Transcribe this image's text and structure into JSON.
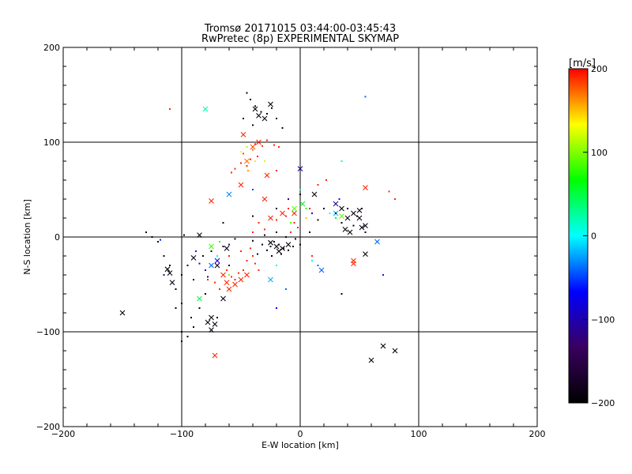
{
  "chart_data": {
    "type": "scatter",
    "title": "Tromsø 20171015 03:44:00-03:45:43",
    "subtitle": "RwPretec (8p) EXPERIMENTAL SKYMAP",
    "xlabel": "E-W location [km]",
    "ylabel": "N-S location [km]",
    "xlim": [
      -200,
      200
    ],
    "ylim": [
      -200,
      200
    ],
    "xticks": [
      -200,
      -100,
      0,
      100,
      200
    ],
    "yticks": [
      -200,
      -100,
      0,
      100,
      200
    ],
    "grid": true,
    "colorbar": {
      "label": "[m/s]",
      "range": [
        -200,
        200
      ],
      "ticks": [
        200,
        100,
        0,
        -100,
        -200
      ],
      "colors": [
        "#000000",
        "#3a0060",
        "#0000ff",
        "#00ffff",
        "#00ff00",
        "#ffff00",
        "#ff0000"
      ]
    },
    "markers": {
      "dot": "small point",
      "cross": "x"
    },
    "points": [
      {
        "x": -50,
        "y": -45,
        "v": 190,
        "m": "x"
      },
      {
        "x": -55,
        "y": -50,
        "v": 190,
        "m": "x"
      },
      {
        "x": -60,
        "y": -55,
        "v": 190,
        "m": "x"
      },
      {
        "x": -45,
        "y": -40,
        "v": 190,
        "m": "x"
      },
      {
        "x": -65,
        "y": -40,
        "v": 190,
        "m": "x"
      },
      {
        "x": -62,
        "y": -48,
        "v": 190,
        "m": "x"
      },
      {
        "x": -72,
        "y": -125,
        "v": 190,
        "m": "x"
      },
      {
        "x": -75,
        "y": 38,
        "v": 190,
        "m": "x"
      },
      {
        "x": -50,
        "y": 55,
        "v": 190,
        "m": "x"
      },
      {
        "x": -45,
        "y": 80,
        "v": 170,
        "m": "x"
      },
      {
        "x": -40,
        "y": 95,
        "v": 180,
        "m": "x"
      },
      {
        "x": -48,
        "y": 108,
        "v": 190,
        "m": "x"
      },
      {
        "x": -35,
        "y": 100,
        "v": 190,
        "m": "x"
      },
      {
        "x": -28,
        "y": 65,
        "v": 190,
        "m": "x"
      },
      {
        "x": -15,
        "y": 25,
        "v": 190,
        "m": "x"
      },
      {
        "x": -25,
        "y": 20,
        "v": 190,
        "m": "x"
      },
      {
        "x": -5,
        "y": 25,
        "v": 190,
        "m": "x"
      },
      {
        "x": 55,
        "y": 52,
        "v": 190,
        "m": "x"
      },
      {
        "x": 45,
        "y": -25,
        "v": 190,
        "m": "x"
      },
      {
        "x": -30,
        "y": 40,
        "v": 190,
        "m": "x"
      },
      {
        "x": -20,
        "y": -10,
        "v": -190,
        "m": "x"
      },
      {
        "x": -15,
        "y": -12,
        "v": -190,
        "m": "x"
      },
      {
        "x": -10,
        "y": -8,
        "v": -190,
        "m": "x"
      },
      {
        "x": -25,
        "y": -6,
        "v": -190,
        "m": "x"
      },
      {
        "x": -18,
        "y": -15,
        "v": -190,
        "m": "x"
      },
      {
        "x": -35,
        "y": 128,
        "v": -190,
        "m": "x"
      },
      {
        "x": -30,
        "y": 125,
        "v": -190,
        "m": "x"
      },
      {
        "x": -38,
        "y": 135,
        "v": -190,
        "m": "x"
      },
      {
        "x": -25,
        "y": 140,
        "v": -190,
        "m": "x"
      },
      {
        "x": 35,
        "y": 30,
        "v": -190,
        "m": "x"
      },
      {
        "x": 40,
        "y": 20,
        "v": -190,
        "m": "x"
      },
      {
        "x": 45,
        "y": 25,
        "v": -190,
        "m": "x"
      },
      {
        "x": 50,
        "y": 28,
        "v": -190,
        "m": "x"
      },
      {
        "x": 38,
        "y": 8,
        "v": -190,
        "m": "x"
      },
      {
        "x": 42,
        "y": 5,
        "v": -190,
        "m": "x"
      },
      {
        "x": 55,
        "y": 12,
        "v": -190,
        "m": "x"
      },
      {
        "x": 12,
        "y": 45,
        "v": -190,
        "m": "x"
      },
      {
        "x": 55,
        "y": -18,
        "v": -190,
        "m": "x"
      },
      {
        "x": -110,
        "y": -38,
        "v": -190,
        "m": "x"
      },
      {
        "x": -108,
        "y": -48,
        "v": -190,
        "m": "x"
      },
      {
        "x": -112,
        "y": -34,
        "v": -190,
        "m": "x"
      },
      {
        "x": -150,
        "y": -80,
        "v": -190,
        "m": "x"
      },
      {
        "x": -75,
        "y": -85,
        "v": -190,
        "m": "x"
      },
      {
        "x": -72,
        "y": -92,
        "v": -190,
        "m": "x"
      },
      {
        "x": -78,
        "y": -90,
        "v": -190,
        "m": "x"
      },
      {
        "x": -75,
        "y": -98,
        "v": -190,
        "m": "x"
      },
      {
        "x": -65,
        "y": -65,
        "v": -190,
        "m": "x"
      },
      {
        "x": -90,
        "y": -22,
        "v": -190,
        "m": "x"
      },
      {
        "x": -85,
        "y": 2,
        "v": -190,
        "m": "x"
      },
      {
        "x": -70,
        "y": -30,
        "v": -190,
        "m": "x"
      },
      {
        "x": -62,
        "y": -12,
        "v": -190,
        "m": "x"
      },
      {
        "x": 70,
        "y": -115,
        "v": -190,
        "m": "x"
      },
      {
        "x": 80,
        "y": -120,
        "v": -190,
        "m": "x"
      },
      {
        "x": 60,
        "y": -130,
        "v": -190,
        "m": "x"
      },
      {
        "x": 50,
        "y": 20,
        "v": -190,
        "m": "x"
      },
      {
        "x": 52,
        "y": 10,
        "v": -190,
        "m": "x"
      },
      {
        "x": -80,
        "y": 135,
        "v": 20,
        "m": "x"
      },
      {
        "x": -85,
        "y": -65,
        "v": 50,
        "m": "x"
      },
      {
        "x": -60,
        "y": 45,
        "v": -30,
        "m": "x"
      },
      {
        "x": -25,
        "y": -45,
        "v": -20,
        "m": "x"
      },
      {
        "x": 65,
        "y": -5,
        "v": -40,
        "m": "x"
      },
      {
        "x": 18,
        "y": -35,
        "v": -40,
        "m": "x"
      },
      {
        "x": -75,
        "y": -30,
        "v": -40,
        "m": "x"
      },
      {
        "x": -70,
        "y": -25,
        "v": -80,
        "m": "x"
      },
      {
        "x": 0,
        "y": 72,
        "v": -110,
        "m": "x"
      },
      {
        "x": 30,
        "y": 35,
        "v": -110,
        "m": "x"
      },
      {
        "x": -75,
        "y": -10,
        "v": 80,
        "m": "x"
      },
      {
        "x": -5,
        "y": 30,
        "v": 90,
        "m": "x"
      },
      {
        "x": 2,
        "y": 35,
        "v": 60,
        "m": "x"
      },
      {
        "x": 35,
        "y": 22,
        "v": 90,
        "m": "x"
      },
      {
        "x": 45,
        "y": -28,
        "v": 190,
        "m": "x"
      },
      {
        "x": 30,
        "y": 25,
        "v": -20,
        "m": "x"
      },
      {
        "x": -45,
        "y": 75,
        "v": 190,
        "m": "."
      },
      {
        "x": -42,
        "y": 82,
        "v": 190,
        "m": "."
      },
      {
        "x": -48,
        "y": 88,
        "v": 180,
        "m": "."
      },
      {
        "x": -40,
        "y": 92,
        "v": 170,
        "m": "."
      },
      {
        "x": -38,
        "y": 98,
        "v": 190,
        "m": "."
      },
      {
        "x": -32,
        "y": 96,
        "v": 190,
        "m": "."
      },
      {
        "x": -28,
        "y": 102,
        "v": 190,
        "m": "."
      },
      {
        "x": -22,
        "y": 97,
        "v": 190,
        "m": "."
      },
      {
        "x": -44,
        "y": 70,
        "v": 160,
        "m": "."
      },
      {
        "x": -50,
        "y": 78,
        "v": 190,
        "m": "."
      },
      {
        "x": -36,
        "y": 85,
        "v": 190,
        "m": "."
      },
      {
        "x": -30,
        "y": 80,
        "v": 120,
        "m": "."
      },
      {
        "x": -18,
        "y": 95,
        "v": 190,
        "m": "."
      },
      {
        "x": -55,
        "y": 72,
        "v": 190,
        "m": "."
      },
      {
        "x": -58,
        "y": 68,
        "v": 190,
        "m": "."
      },
      {
        "x": -20,
        "y": 70,
        "v": 190,
        "m": "."
      },
      {
        "x": -10,
        "y": 30,
        "v": 190,
        "m": "."
      },
      {
        "x": -5,
        "y": 15,
        "v": 190,
        "m": "."
      },
      {
        "x": -12,
        "y": 22,
        "v": 190,
        "m": "."
      },
      {
        "x": -20,
        "y": 18,
        "v": 190,
        "m": "."
      },
      {
        "x": -2,
        "y": 10,
        "v": 190,
        "m": "."
      },
      {
        "x": -30,
        "y": 8,
        "v": 190,
        "m": "."
      },
      {
        "x": -35,
        "y": 15,
        "v": 190,
        "m": "."
      },
      {
        "x": -40,
        "y": 5,
        "v": 190,
        "m": "."
      },
      {
        "x": -8,
        "y": 5,
        "v": 190,
        "m": "."
      },
      {
        "x": 5,
        "y": 20,
        "v": 150,
        "m": "."
      },
      {
        "x": 8,
        "y": 30,
        "v": 190,
        "m": "."
      },
      {
        "x": 15,
        "y": 55,
        "v": 190,
        "m": "."
      },
      {
        "x": 22,
        "y": 60,
        "v": 190,
        "m": "."
      },
      {
        "x": 75,
        "y": 48,
        "v": 190,
        "m": "."
      },
      {
        "x": 80,
        "y": 40,
        "v": 190,
        "m": "."
      },
      {
        "x": -110,
        "y": 135,
        "v": 190,
        "m": "."
      },
      {
        "x": -55,
        "y": -45,
        "v": 190,
        "m": "."
      },
      {
        "x": -58,
        "y": -42,
        "v": 190,
        "m": "."
      },
      {
        "x": -52,
        "y": -38,
        "v": 190,
        "m": "."
      },
      {
        "x": -48,
        "y": -35,
        "v": 190,
        "m": "."
      },
      {
        "x": -62,
        "y": -35,
        "v": 190,
        "m": "."
      },
      {
        "x": -45,
        "y": -25,
        "v": 190,
        "m": "."
      },
      {
        "x": -40,
        "y": -20,
        "v": 190,
        "m": "."
      },
      {
        "x": -38,
        "y": -28,
        "v": 190,
        "m": "."
      },
      {
        "x": -68,
        "y": -55,
        "v": 190,
        "m": "."
      },
      {
        "x": -72,
        "y": -48,
        "v": 190,
        "m": "."
      },
      {
        "x": -78,
        "y": -45,
        "v": 190,
        "m": "."
      },
      {
        "x": -42,
        "y": -12,
        "v": 190,
        "m": "."
      },
      {
        "x": -50,
        "y": -15,
        "v": 190,
        "m": "."
      },
      {
        "x": -60,
        "y": -20,
        "v": 190,
        "m": "."
      },
      {
        "x": -35,
        "y": -35,
        "v": 190,
        "m": "."
      },
      {
        "x": 10,
        "y": -20,
        "v": 190,
        "m": "."
      },
      {
        "x": -25,
        "y": -10,
        "v": -190,
        "m": "."
      },
      {
        "x": -22,
        "y": -5,
        "v": -190,
        "m": "."
      },
      {
        "x": -18,
        "y": -8,
        "v": -190,
        "m": "."
      },
      {
        "x": -14,
        "y": -12,
        "v": -190,
        "m": "."
      },
      {
        "x": -10,
        "y": -14,
        "v": -190,
        "m": "."
      },
      {
        "x": -6,
        "y": -10,
        "v": -190,
        "m": "."
      },
      {
        "x": -28,
        "y": -14,
        "v": -190,
        "m": "."
      },
      {
        "x": -32,
        "y": -8,
        "v": -190,
        "m": "."
      },
      {
        "x": -30,
        "y": 2,
        "v": -190,
        "m": "."
      },
      {
        "x": -20,
        "y": 5,
        "v": -190,
        "m": "."
      },
      {
        "x": -12,
        "y": 0,
        "v": -190,
        "m": "."
      },
      {
        "x": -4,
        "y": -2,
        "v": -190,
        "m": "."
      },
      {
        "x": 0,
        "y": -8,
        "v": -190,
        "m": "."
      },
      {
        "x": -16,
        "y": -18,
        "v": -190,
        "m": "."
      },
      {
        "x": -24,
        "y": -20,
        "v": -190,
        "m": "."
      },
      {
        "x": -36,
        "y": -18,
        "v": -190,
        "m": "."
      },
      {
        "x": -40,
        "y": -4,
        "v": -190,
        "m": "."
      },
      {
        "x": -55,
        "y": -2,
        "v": -190,
        "m": "."
      },
      {
        "x": -60,
        "y": -30,
        "v": -190,
        "m": "."
      },
      {
        "x": -65,
        "y": -10,
        "v": -190,
        "m": "."
      },
      {
        "x": -38,
        "y": 138,
        "v": -190,
        "m": "."
      },
      {
        "x": -42,
        "y": 145,
        "v": -190,
        "m": "."
      },
      {
        "x": -33,
        "y": 132,
        "v": -190,
        "m": "."
      },
      {
        "x": -28,
        "y": 130,
        "v": -190,
        "m": "."
      },
      {
        "x": -24,
        "y": 136,
        "v": -190,
        "m": "."
      },
      {
        "x": -45,
        "y": 152,
        "v": -190,
        "m": "."
      },
      {
        "x": -40,
        "y": 118,
        "v": -190,
        "m": "."
      },
      {
        "x": -20,
        "y": 125,
        "v": -190,
        "m": "."
      },
      {
        "x": -15,
        "y": 115,
        "v": -190,
        "m": "."
      },
      {
        "x": -48,
        "y": 125,
        "v": -190,
        "m": "."
      },
      {
        "x": -110,
        "y": -30,
        "v": -190,
        "m": "."
      },
      {
        "x": -115,
        "y": -20,
        "v": -190,
        "m": "."
      },
      {
        "x": -100,
        "y": -40,
        "v": -190,
        "m": "."
      },
      {
        "x": -105,
        "y": -55,
        "v": -190,
        "m": "."
      },
      {
        "x": -95,
        "y": -30,
        "v": -190,
        "m": "."
      },
      {
        "x": -90,
        "y": -45,
        "v": -190,
        "m": "."
      },
      {
        "x": -120,
        "y": -5,
        "v": -190,
        "m": "."
      },
      {
        "x": -125,
        "y": 0,
        "v": -190,
        "m": "."
      },
      {
        "x": -100,
        "y": -70,
        "v": -190,
        "m": "."
      },
      {
        "x": -105,
        "y": -75,
        "v": -190,
        "m": "."
      },
      {
        "x": -100,
        "y": -100,
        "v": -190,
        "m": "."
      },
      {
        "x": -95,
        "y": -105,
        "v": -190,
        "m": "."
      },
      {
        "x": -90,
        "y": -95,
        "v": -190,
        "m": "."
      },
      {
        "x": -100,
        "y": -110,
        "v": -190,
        "m": "."
      },
      {
        "x": -92,
        "y": -85,
        "v": -190,
        "m": "."
      },
      {
        "x": -85,
        "y": -75,
        "v": -190,
        "m": "."
      },
      {
        "x": -80,
        "y": -60,
        "v": -190,
        "m": "."
      },
      {
        "x": -98,
        "y": 2,
        "v": -190,
        "m": "."
      },
      {
        "x": -75,
        "y": -15,
        "v": -190,
        "m": "."
      },
      {
        "x": -82,
        "y": -20,
        "v": -190,
        "m": "."
      },
      {
        "x": 35,
        "y": 15,
        "v": -190,
        "m": "."
      },
      {
        "x": 30,
        "y": 25,
        "v": -190,
        "m": "."
      },
      {
        "x": 40,
        "y": 30,
        "v": -190,
        "m": "."
      },
      {
        "x": 48,
        "y": 22,
        "v": -190,
        "m": "."
      },
      {
        "x": 45,
        "y": 12,
        "v": -190,
        "m": "."
      },
      {
        "x": 52,
        "y": 30,
        "v": -190,
        "m": "."
      },
      {
        "x": 55,
        "y": 5,
        "v": -190,
        "m": "."
      },
      {
        "x": 35,
        "y": -60,
        "v": -190,
        "m": "."
      },
      {
        "x": 20,
        "y": 30,
        "v": -190,
        "m": "."
      },
      {
        "x": 15,
        "y": 18,
        "v": -190,
        "m": "."
      },
      {
        "x": 8,
        "y": 5,
        "v": -190,
        "m": "."
      },
      {
        "x": 0,
        "y": 45,
        "v": -190,
        "m": "."
      },
      {
        "x": -65,
        "y": 15,
        "v": -190,
        "m": "."
      },
      {
        "x": -40,
        "y": 22,
        "v": -190,
        "m": "."
      },
      {
        "x": -130,
        "y": 5,
        "v": -190,
        "m": "."
      },
      {
        "x": -70,
        "y": -85,
        "v": -190,
        "m": "."
      },
      {
        "x": -20,
        "y": 30,
        "v": -190,
        "m": "."
      },
      {
        "x": -80,
        "y": -35,
        "v": -100,
        "m": "."
      },
      {
        "x": -85,
        "y": -28,
        "v": -120,
        "m": "."
      },
      {
        "x": -115,
        "y": -40,
        "v": -110,
        "m": "."
      },
      {
        "x": -78,
        "y": -42,
        "v": -130,
        "m": "."
      },
      {
        "x": 10,
        "y": 25,
        "v": -100,
        "m": "."
      },
      {
        "x": -60,
        "y": -8,
        "v": -110,
        "m": "."
      },
      {
        "x": -10,
        "y": 40,
        "v": -120,
        "m": "."
      },
      {
        "x": -88,
        "y": -15,
        "v": -60,
        "m": "."
      },
      {
        "x": -118,
        "y": -3,
        "v": -60,
        "m": "."
      },
      {
        "x": -40,
        "y": 50,
        "v": -50,
        "m": "."
      },
      {
        "x": 33,
        "y": 40,
        "v": -60,
        "m": "."
      },
      {
        "x": 70,
        "y": -40,
        "v": -60,
        "m": "."
      },
      {
        "x": 15,
        "y": -30,
        "v": -40,
        "m": "."
      },
      {
        "x": -12,
        "y": -55,
        "v": -40,
        "m": "."
      },
      {
        "x": -70,
        "y": -20,
        "v": 10,
        "m": "."
      },
      {
        "x": 0,
        "y": 50,
        "v": 10,
        "m": "."
      },
      {
        "x": 35,
        "y": 80,
        "v": 10,
        "m": "."
      },
      {
        "x": 10,
        "y": -25,
        "v": 10,
        "m": "."
      },
      {
        "x": -20,
        "y": -30,
        "v": 10,
        "m": "."
      },
      {
        "x": 25,
        "y": 25,
        "v": 0,
        "m": "."
      },
      {
        "x": -68,
        "y": -5,
        "v": 60,
        "m": "."
      },
      {
        "x": 5,
        "y": 30,
        "v": 80,
        "m": "."
      },
      {
        "x": -8,
        "y": 15,
        "v": 90,
        "m": "."
      },
      {
        "x": 30,
        "y": 20,
        "v": 60,
        "m": "."
      },
      {
        "x": -60,
        "y": -40,
        "v": 100,
        "m": "."
      },
      {
        "x": -45,
        "y": 95,
        "v": 110,
        "m": "."
      },
      {
        "x": -38,
        "y": 80,
        "v": 140,
        "m": "."
      },
      {
        "x": -50,
        "y": 90,
        "v": 130,
        "m": "."
      },
      {
        "x": 55,
        "y": 148,
        "v": -40,
        "m": "."
      },
      {
        "x": -20,
        "y": -75,
        "v": -80,
        "m": "."
      }
    ]
  }
}
